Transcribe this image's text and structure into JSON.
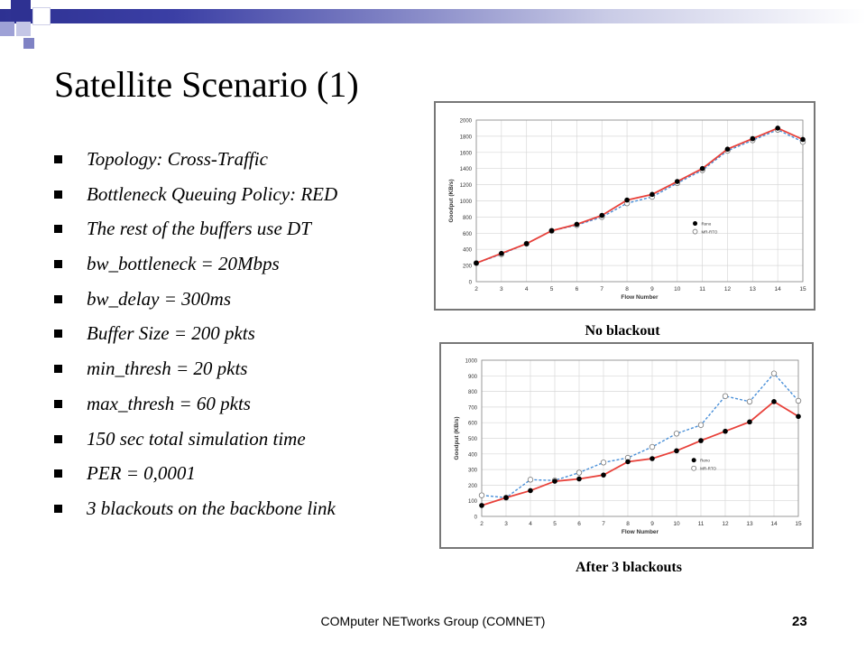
{
  "slide": {
    "title": "Satellite Scenario (1)",
    "bullets": [
      "Topology: Cross-Traffic",
      "Bottleneck Queuing Policy: RED",
      "The rest of the buffers use DT",
      "bw_bottleneck = 20Mbps",
      "bw_delay = 300ms",
      "Buffer Size = 200 pkts",
      "min_thresh = 20 pkts",
      "max_thresh = 60 pkts",
      "150 sec total simulation time",
      "PER = 0,0001",
      "3 blackouts on the backbone link"
    ],
    "footer": "COMputer NETworks Group (COMNET)",
    "page_number": "23",
    "colors": {
      "accent": "#2e3192",
      "reno": "#e8413a",
      "mrrto": "#4a90d9"
    }
  },
  "chart_data": [
    {
      "type": "line",
      "caption": "No blackout",
      "xlabel": "Flow Number",
      "ylabel": "Goodput (KB/s)",
      "x": [
        2,
        3,
        4,
        5,
        6,
        7,
        8,
        9,
        10,
        11,
        12,
        13,
        14,
        15
      ],
      "xlim": [
        2,
        15
      ],
      "ylim": [
        0,
        2000
      ],
      "xticks": [
        "2",
        "3",
        "4",
        "5",
        "6",
        "7",
        "8",
        "9",
        "10",
        "11",
        "12",
        "13",
        "14",
        "15"
      ],
      "yticks": [
        "0",
        "200",
        "400",
        "600",
        "800",
        "1000",
        "1200",
        "1400",
        "1600",
        "1800",
        "2000"
      ],
      "legend_position": "right",
      "series": [
        {
          "name": "Reno",
          "marker": "filled-circle",
          "line": "solid",
          "values": [
            230,
            350,
            470,
            630,
            710,
            820,
            1010,
            1080,
            1240,
            1400,
            1640,
            1770,
            1900,
            1760
          ]
        },
        {
          "name": "MR-RTO",
          "marker": "open-circle",
          "line": "dashed",
          "values": [
            230,
            340,
            470,
            630,
            700,
            800,
            970,
            1050,
            1220,
            1380,
            1620,
            1750,
            1880,
            1730
          ]
        }
      ]
    },
    {
      "type": "line",
      "caption": "After 3 blackouts",
      "xlabel": "Flow Number",
      "ylabel": "Goodput (KB/s)",
      "x": [
        2,
        3,
        4,
        5,
        6,
        7,
        8,
        9,
        10,
        11,
        12,
        13,
        14,
        15
      ],
      "xlim": [
        2,
        15
      ],
      "ylim": [
        0,
        1000
      ],
      "xticks": [
        "2",
        "3",
        "4",
        "5",
        "6",
        "7",
        "8",
        "9",
        "10",
        "11",
        "12",
        "13",
        "14",
        "15"
      ],
      "yticks": [
        "0",
        "100",
        "200",
        "300",
        "400",
        "500",
        "600",
        "700",
        "800",
        "900",
        "1000"
      ],
      "legend_position": "right",
      "series": [
        {
          "name": "Reno",
          "marker": "filled-circle",
          "line": "solid",
          "values": [
            70,
            120,
            165,
            225,
            240,
            265,
            350,
            370,
            420,
            485,
            545,
            605,
            735,
            640
          ]
        },
        {
          "name": "MR-RTO",
          "marker": "open-circle",
          "line": "dashed",
          "values": [
            135,
            120,
            235,
            230,
            280,
            345,
            375,
            445,
            530,
            585,
            770,
            735,
            915,
            740
          ]
        }
      ]
    }
  ]
}
